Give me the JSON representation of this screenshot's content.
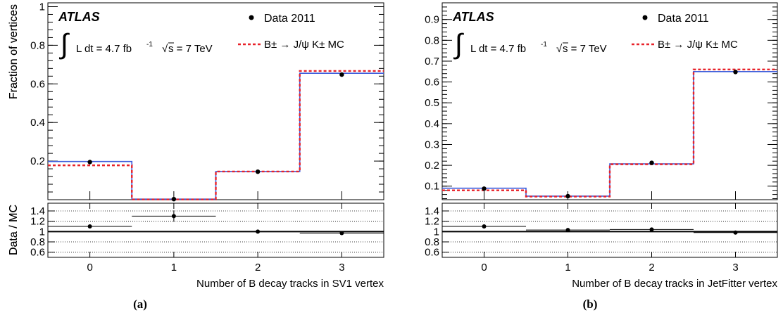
{
  "experiment_label": "ATLAS",
  "luminosity_label": "L dt = 4.7 fb",
  "luminosity_exponent": "-1",
  "energy_label": "s = 7 TeV",
  "legend": {
    "data": "Data 2011",
    "mc": "B± → J/ψ K± MC"
  },
  "colors": {
    "data": "#000000",
    "mc": "#e8222a",
    "blue": "#3b5bdb"
  },
  "chart_data": [
    {
      "type": "step",
      "caption": "(a)",
      "xlabel": "Number of B decay tracks in SV1 vertex",
      "ylabel": "Fraction of vertices",
      "ratio_ylabel": "Data / MC",
      "categories": [
        0,
        1,
        2,
        3
      ],
      "xlim": [
        -0.5,
        3.5
      ],
      "ylim": [
        0.0,
        1.02
      ],
      "yticks": [
        0.2,
        0.4,
        0.6,
        0.8,
        1
      ],
      "ratio_ylim": [
        0.5,
        1.55
      ],
      "ratio_yticks": [
        0.6,
        0.8,
        1,
        1.2,
        1.4
      ],
      "series": [
        {
          "name": "Data 2011",
          "values": [
            0.195,
            0.003,
            0.145,
            0.648
          ]
        },
        {
          "name": "B± → J/ψ K± MC",
          "values": [
            0.178,
            0.001,
            0.146,
            0.667
          ]
        }
      ],
      "blue_values": [
        0.198,
        0.003,
        0.146,
        0.655
      ],
      "ratio": [
        1.1,
        1.3,
        1.0,
        0.97
      ],
      "ratio_err": [
        0.0,
        0.11,
        0.0,
        0.0
      ]
    },
    {
      "type": "step",
      "caption": "(b)",
      "xlabel": "Number of B decay tracks in JetFitter vertex",
      "ylabel": "Fraction of vertices",
      "ratio_ylabel": "Data / MC",
      "categories": [
        0,
        1,
        2,
        3
      ],
      "xlim": [
        -0.5,
        3.5
      ],
      "ylim": [
        0.035,
        0.98
      ],
      "yticks": [
        0.1,
        0.2,
        0.3,
        0.4,
        0.5,
        0.6,
        0.7,
        0.8,
        0.9
      ],
      "ratio_ylim": [
        0.5,
        1.55
      ],
      "ratio_yticks": [
        0.6,
        0.8,
        1,
        1.2,
        1.4
      ],
      "series": [
        {
          "name": "Data 2011",
          "values": [
            0.088,
            0.052,
            0.212,
            0.648
          ]
        },
        {
          "name": "B± → J/ψ K± MC",
          "values": [
            0.08,
            0.05,
            0.205,
            0.66
          ]
        }
      ],
      "blue_values": [
        0.09,
        0.052,
        0.207,
        0.65
      ],
      "ratio": [
        1.1,
        1.03,
        1.04,
        0.98
      ],
      "ratio_err": [
        0.0,
        0.0,
        0.0,
        0.0
      ]
    }
  ]
}
